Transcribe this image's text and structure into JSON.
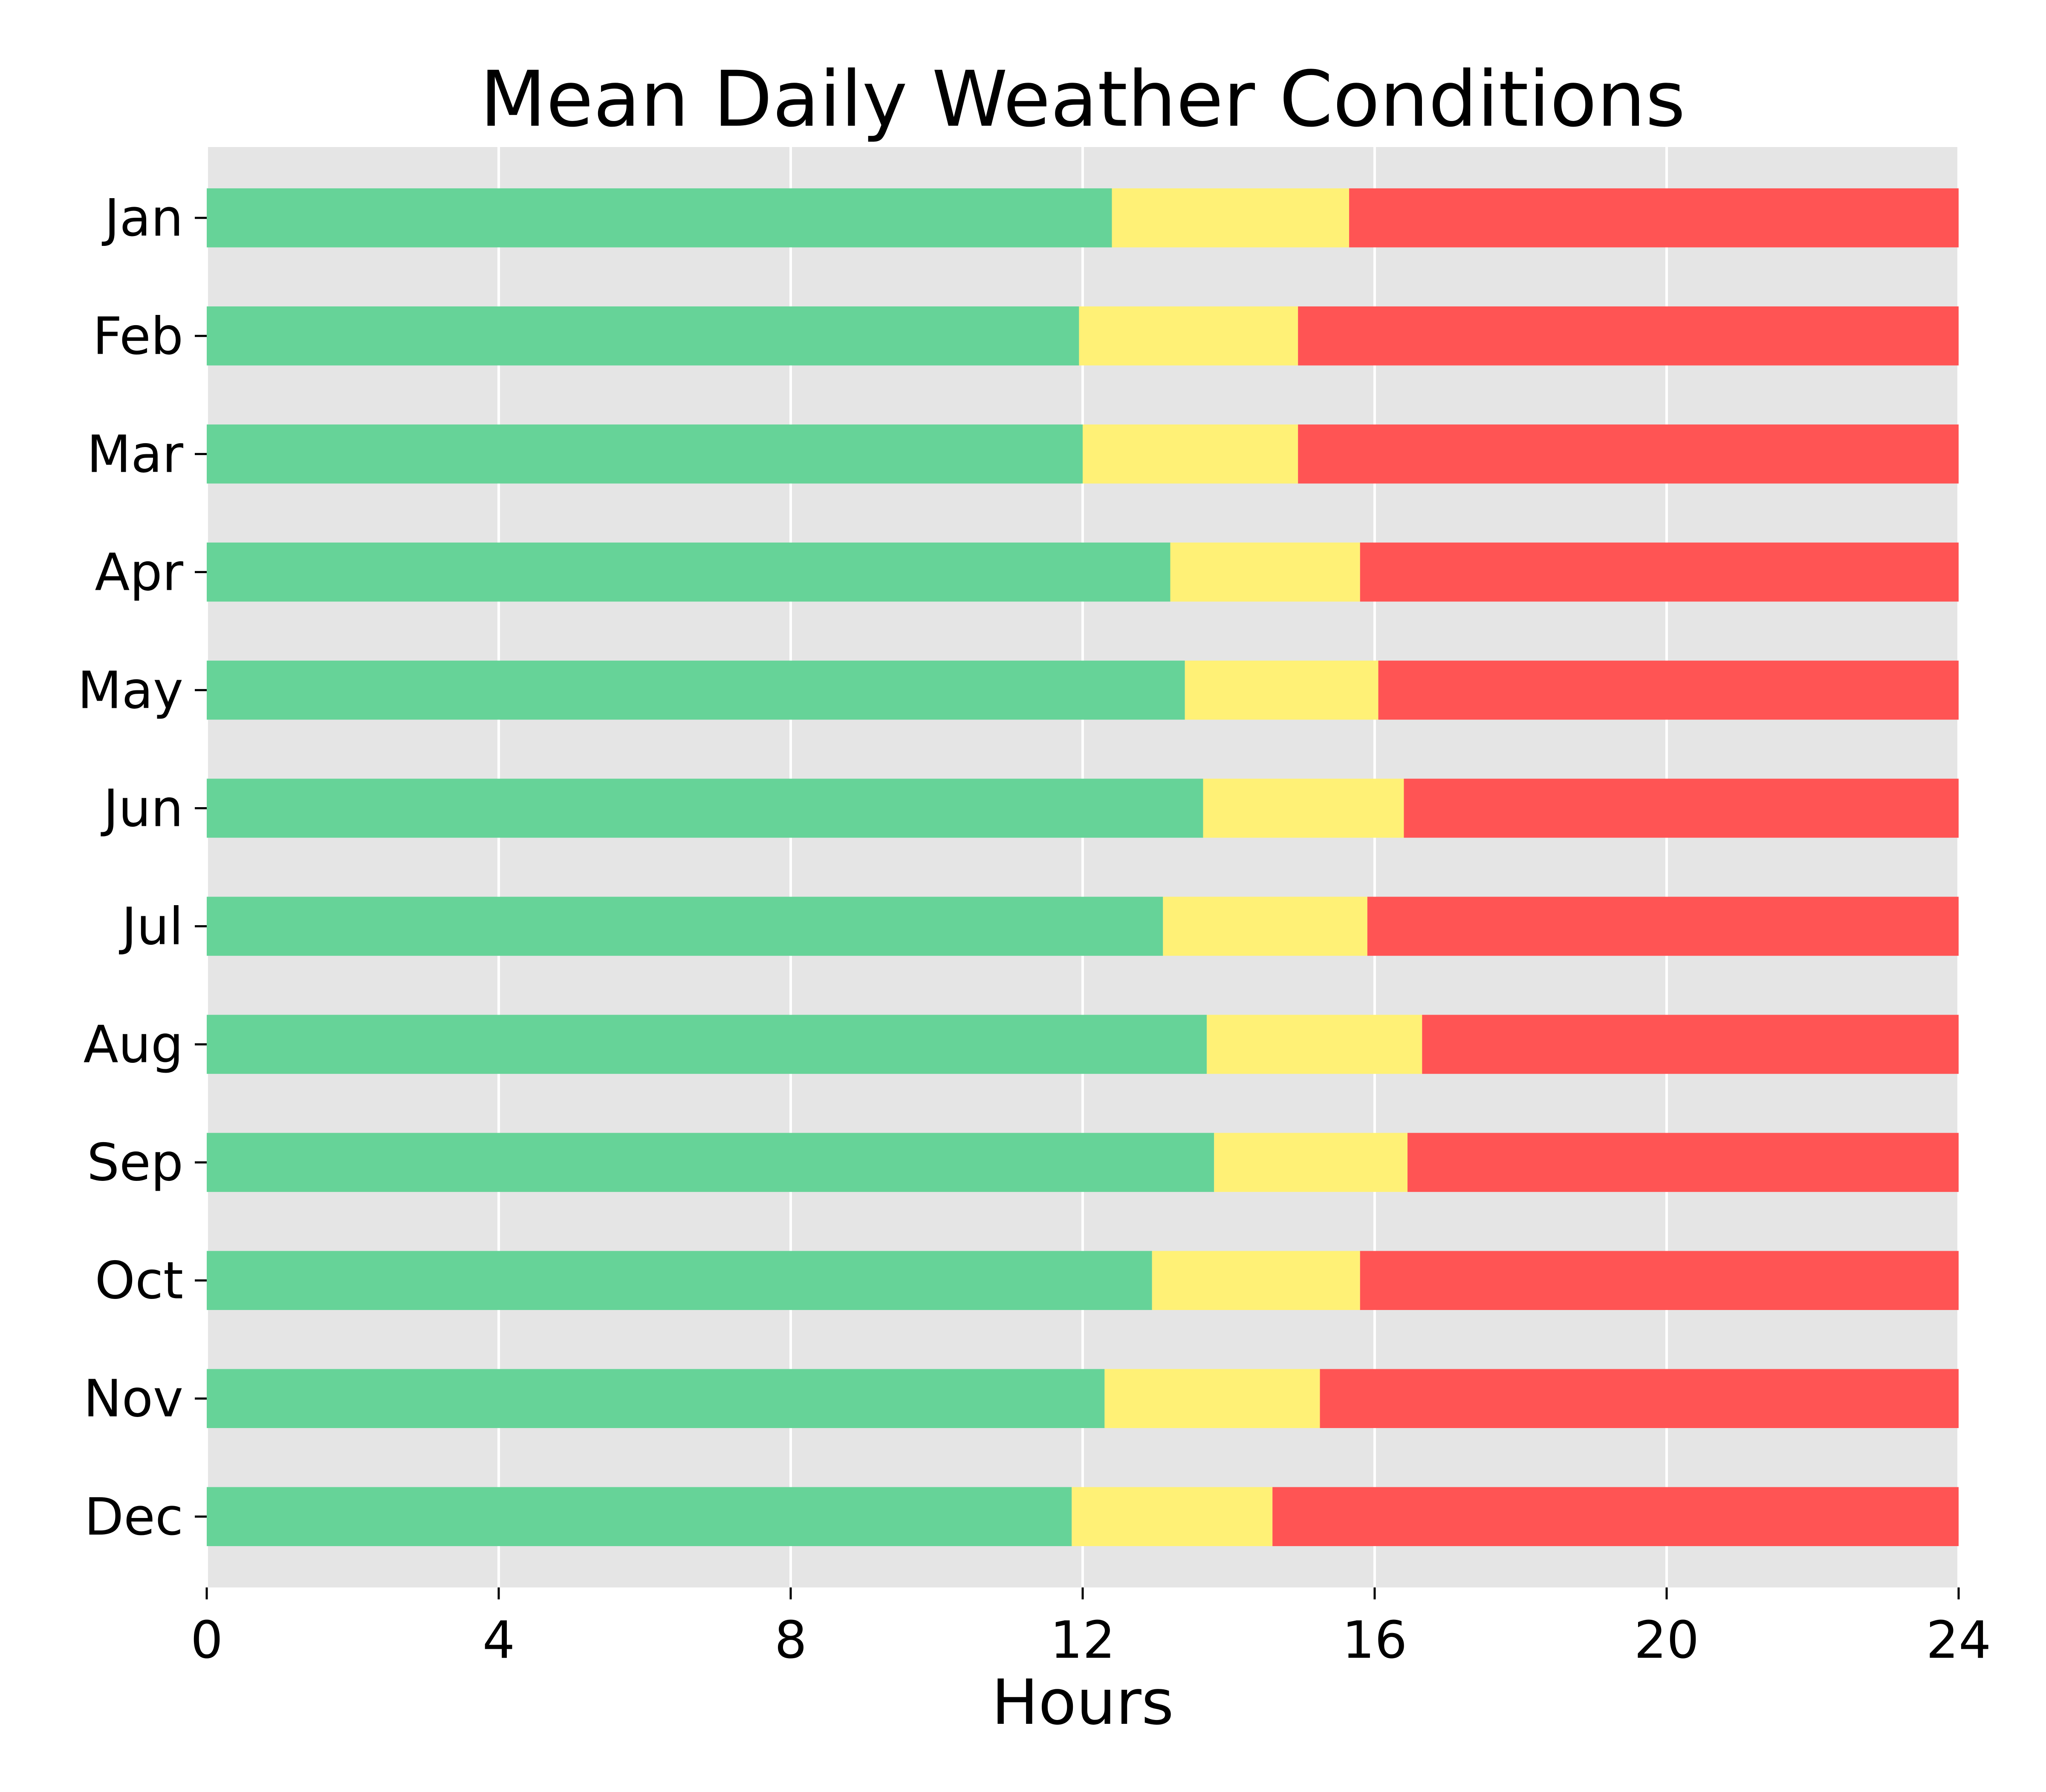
{
  "chart_data": {
    "type": "bar",
    "orientation": "horizontal",
    "stacked": true,
    "title": "Mean Daily Weather Conditions",
    "xlabel": "Hours",
    "ylabel": "",
    "xlim": [
      0,
      24
    ],
    "xticks": [
      0,
      4,
      8,
      12,
      16,
      20,
      24
    ],
    "categories": [
      "Jan",
      "Feb",
      "Mar",
      "Apr",
      "May",
      "Jun",
      "Jul",
      "Aug",
      "Sep",
      "Oct",
      "Nov",
      "Dec"
    ],
    "series": [
      {
        "color": "#66d398",
        "values": [
          12.4,
          11.95,
          12.0,
          13.2,
          13.4,
          13.65,
          13.1,
          13.7,
          13.8,
          12.95,
          12.3,
          11.85
        ]
      },
      {
        "color": "#fff176",
        "values": [
          3.25,
          3.0,
          2.95,
          2.6,
          2.65,
          2.75,
          2.8,
          2.95,
          2.65,
          2.85,
          2.95,
          2.75
        ]
      },
      {
        "color": "#ff5454",
        "values": [
          8.35,
          9.05,
          9.05,
          8.2,
          7.95,
          7.6,
          8.1,
          7.35,
          7.55,
          8.2,
          8.75,
          9.4
        ]
      }
    ],
    "grid": true,
    "background": "#e5e5e5",
    "gridline_color": "#ffffff"
  }
}
